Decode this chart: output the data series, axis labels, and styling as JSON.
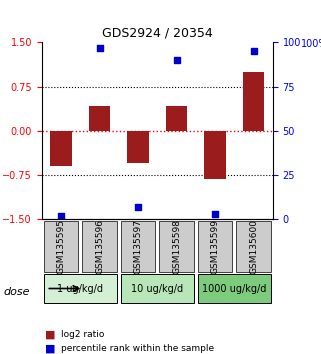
{
  "title": "GDS2924 / 20354",
  "samples": [
    "GSM135595",
    "GSM135596",
    "GSM135597",
    "GSM135598",
    "GSM135599",
    "GSM135600"
  ],
  "log2_ratios": [
    -0.6,
    0.42,
    -0.55,
    0.42,
    -0.82,
    1.0
  ],
  "percentile_ranks": [
    2,
    97,
    7,
    90,
    3,
    95
  ],
  "bar_color": "#9B1C1C",
  "dot_color": "#0000CC",
  "ylim": [
    -1.5,
    1.5
  ],
  "yticks_left": [
    -1.5,
    -0.75,
    0,
    0.75,
    1.5
  ],
  "yticks_right": [
    0,
    25,
    50,
    75,
    100
  ],
  "dose_groups": [
    {
      "label": "1 ug/kg/d",
      "samples": [
        0,
        1
      ],
      "color": "#d4f0d4"
    },
    {
      "label": "10 ug/kg/d",
      "samples": [
        2,
        3
      ],
      "color": "#b8e6b8"
    },
    {
      "label": "1000 ug/kg/d",
      "samples": [
        4,
        5
      ],
      "color": "#7dcc7d"
    }
  ],
  "legend_bar_label": "log2 ratio",
  "legend_dot_label": "percentile rank within the sample",
  "background_color": "#ffffff",
  "plot_bg_color": "#ffffff",
  "sample_box_color": "#cccccc",
  "dose_label": "dose"
}
